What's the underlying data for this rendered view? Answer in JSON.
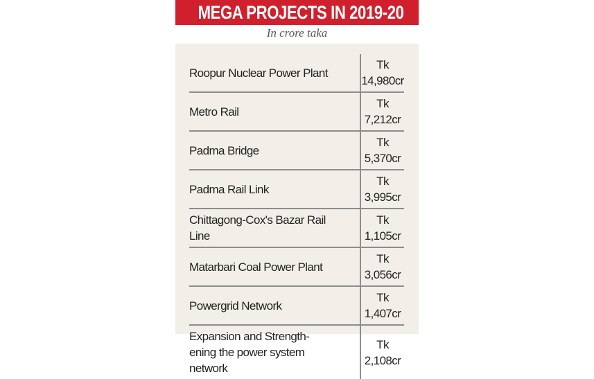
{
  "header": {
    "title": "MEGA PROJECTS IN 2019-20",
    "subtitle": "In crore taka",
    "colors": {
      "banner": "#d0202e",
      "panel": "#f1efe8"
    }
  },
  "rows": [
    {
      "project": "Roopur Nuclear Power Plant",
      "amount": "Tk 14,980cr"
    },
    {
      "project": "Metro Rail",
      "amount": "Tk 7,212cr"
    },
    {
      "project": "Padma Bridge",
      "amount": "Tk 5,370cr"
    },
    {
      "project": "Padma Rail Link",
      "amount": "Tk 3,995cr"
    },
    {
      "project": "Chittagong-Cox's Bazar Rail Line",
      "amount": "Tk 1,105cr"
    },
    {
      "project": "Matarbari Coal Power Plant",
      "amount": "Tk 3,056cr"
    },
    {
      "project": "Powergrid Network",
      "amount": "Tk 1,407cr"
    },
    {
      "project": "Expansion and Strength-ening the power system network",
      "amount": "Tk 2,108cr"
    }
  ]
}
